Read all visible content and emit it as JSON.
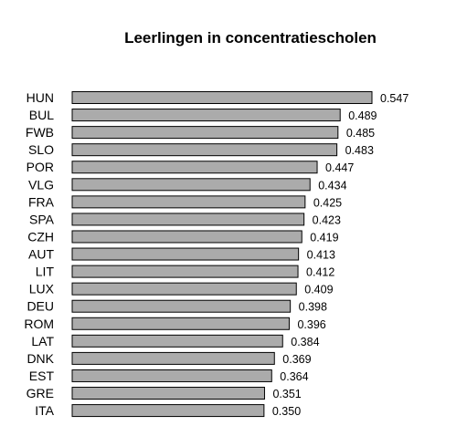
{
  "chart_data": {
    "type": "bar",
    "orientation": "horizontal",
    "title": "Leerlingen in concentratiescholen",
    "xlabel": "",
    "ylabel": "",
    "categories": [
      "HUN",
      "BUL",
      "FWB",
      "SLO",
      "POR",
      "VLG",
      "FRA",
      "SPA",
      "CZH",
      "AUT",
      "LIT",
      "LUX",
      "DEU",
      "ROM",
      "LAT",
      "DNK",
      "EST",
      "GRE",
      "ITA"
    ],
    "values": [
      0.547,
      0.489,
      0.485,
      0.483,
      0.447,
      0.434,
      0.425,
      0.423,
      0.419,
      0.413,
      0.412,
      0.409,
      0.398,
      0.396,
      0.384,
      0.369,
      0.364,
      0.351,
      0.35
    ],
    "value_labels": [
      "0.547",
      "0.489",
      "0.485",
      "0.483",
      "0.447",
      "0.434",
      "0.425",
      "0.423",
      "0.419",
      "0.413",
      "0.412",
      "0.409",
      "0.398",
      "0.396",
      "0.384",
      "0.369",
      "0.364",
      "0.351",
      "0.350"
    ],
    "xlim": [
      0,
      0.547
    ],
    "grid": false,
    "legend": "none",
    "colors": {
      "bar_fill": "#ababab",
      "bar_stroke": "#000000",
      "text": "#000000",
      "background": "#ffffff"
    }
  }
}
